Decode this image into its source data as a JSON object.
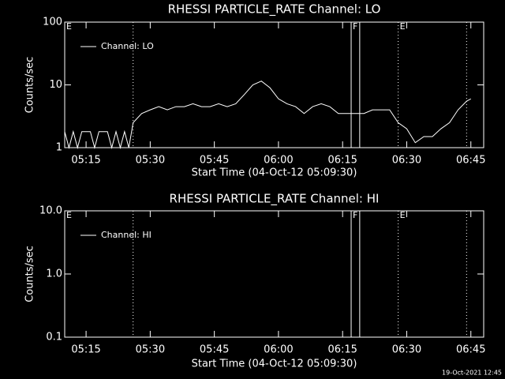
{
  "chart_data": [
    {
      "type": "line",
      "title": "RHESSI PARTICLE_RATE Channel: LO",
      "xlabel": "Start Time (04-Oct-12 05:09:30)",
      "ylabel": "Counts/sec",
      "log_y": true,
      "ylim": [
        1,
        100
      ],
      "yticks": [
        1,
        10,
        100
      ],
      "xlim": [
        "05:10",
        "06:48"
      ],
      "xticks": [
        "05:15",
        "05:30",
        "05:45",
        "06:00",
        "06:15",
        "06:30",
        "06:45"
      ],
      "legend": "upper left",
      "series": [
        {
          "name": "Channel: LO",
          "color": "#ffffff",
          "x": [
            "05:10",
            "05:11",
            "05:12",
            "05:13",
            "05:14",
            "05:16",
            "05:17",
            "05:18",
            "05:20",
            "05:21",
            "05:22",
            "05:23",
            "05:24",
            "05:25",
            "05:26",
            "05:28",
            "05:30",
            "05:32",
            "05:34",
            "05:36",
            "05:38",
            "05:40",
            "05:42",
            "05:44",
            "05:46",
            "05:48",
            "05:50",
            "05:52",
            "05:54",
            "05:56",
            "05:58",
            "06:00",
            "06:02",
            "06:04",
            "06:06",
            "06:08",
            "06:10",
            "06:12",
            "06:14",
            "06:16",
            "06:18",
            "06:20",
            "06:22",
            "06:24",
            "06:26",
            "06:28",
            "06:30",
            "06:32",
            "06:34",
            "06:36",
            "06:38",
            "06:40",
            "06:42",
            "06:44",
            "06:45"
          ],
          "values": [
            1.8,
            1,
            1.8,
            1,
            1.8,
            1.8,
            1,
            1.8,
            1.8,
            1,
            1.8,
            1,
            1.8,
            1,
            2.5,
            3.5,
            4,
            4.5,
            4,
            4.5,
            4.5,
            5,
            4.5,
            4.5,
            5,
            4.5,
            5,
            7,
            10,
            11.5,
            9,
            6,
            5,
            4.5,
            3.5,
            4.5,
            5,
            4.5,
            3.5,
            3.5,
            3.5,
            3.5,
            4,
            4,
            4,
            2.5,
            2,
            1.2,
            1.5,
            1.5,
            2,
            2.5,
            4,
            5.5,
            6
          ]
        }
      ],
      "vlines": [
        {
          "x": "05:26",
          "dotted": true
        },
        {
          "x": "06:17",
          "dotted": false
        },
        {
          "x": "06:19",
          "dotted": false
        },
        {
          "x": "06:28",
          "dotted": true
        },
        {
          "x": "06:44",
          "dotted": true
        }
      ],
      "annotations": [
        {
          "x": "05:10",
          "text": "E"
        },
        {
          "x": "06:17",
          "text": "F"
        },
        {
          "x": "06:28",
          "text": "E"
        }
      ]
    },
    {
      "type": "line",
      "title": "RHESSI PARTICLE_RATE Channel: HI",
      "xlabel": "Start Time (04-Oct-12 05:09:30)",
      "ylabel": "Counts/sec",
      "log_y": true,
      "ylim": [
        0.1,
        10
      ],
      "yticks": [
        0.1,
        {
          "value": 1,
          "label": "1.0"
        },
        {
          "value": 10,
          "label": "10.0"
        }
      ],
      "xlim": [
        "05:10",
        "06:48"
      ],
      "xticks": [
        "05:15",
        "05:30",
        "05:45",
        "06:00",
        "06:15",
        "06:30",
        "06:45"
      ],
      "legend": "upper left",
      "series": [
        {
          "name": "Channel: HI",
          "color": "#ffffff",
          "x": [],
          "values": []
        }
      ],
      "vlines": [
        {
          "x": "05:26",
          "dotted": true
        },
        {
          "x": "06:17",
          "dotted": false
        },
        {
          "x": "06:19",
          "dotted": false
        },
        {
          "x": "06:28",
          "dotted": true
        },
        {
          "x": "06:44",
          "dotted": true
        }
      ],
      "annotations": [
        {
          "x": "05:10",
          "text": "E"
        },
        {
          "x": "06:17",
          "text": "F"
        },
        {
          "x": "06:28",
          "text": "E"
        }
      ]
    }
  ],
  "footer": "19-Oct-2021 12:45"
}
